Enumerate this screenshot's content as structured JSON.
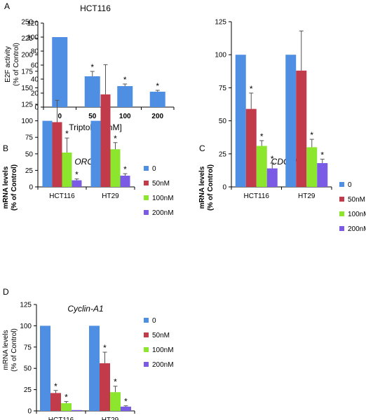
{
  "panels": [
    {
      "letter": "A",
      "colors": [
        "#4F8FE3"
      ],
      "chart_data": {
        "type": "bar",
        "title": "HCT116",
        "xlabel": "Triptolide [nM]",
        "ylabel_lines": [
          "E2F activity",
          "(% of Control)"
        ],
        "categories": [
          "0",
          "50",
          "100",
          "200"
        ],
        "series": [
          {
            "values": [
              100,
              44,
              30,
              22
            ],
            "errors": [
              0,
              7,
              3,
              2
            ],
            "sig": [
              false,
              true,
              true,
              true
            ]
          }
        ],
        "ylim": [
          0,
          120
        ],
        "yticks": [
          "0",
          "20",
          "40",
          "60",
          "80",
          "100",
          "120"
        ],
        "grid": false,
        "legend": "none"
      }
    },
    {
      "letter": "B",
      "colors": [
        "#4F8FE3",
        "#C23B4B",
        "#8CE62E",
        "#7B5BE6"
      ],
      "chart_data": {
        "type": "bar",
        "title": "ORC-1",
        "ylabel_lines": [
          "mRNA levels",
          "(% of Control)"
        ],
        "categories": [
          "HCT116",
          "HT29"
        ],
        "series": [
          {
            "name": "0",
            "values": [
              100,
              100
            ],
            "errors": [
              0,
              0
            ],
            "sig": [
              false,
              false
            ]
          },
          {
            "name": "50nM",
            "values": [
              98,
              140
            ],
            "errors": [
              33,
              45
            ],
            "sig": [
              false,
              false
            ]
          },
          {
            "name": "100nM",
            "values": [
              52,
              57
            ],
            "errors": [
              22,
              10
            ],
            "sig": [
              true,
              true
            ]
          },
          {
            "name": "200nM",
            "values": [
              10,
              17
            ],
            "errors": [
              2,
              3
            ],
            "sig": [
              true,
              true
            ]
          }
        ],
        "ylim": [
          0,
          250
        ],
        "yticks": [
          "0",
          "25",
          "50",
          "75",
          "100",
          "125",
          "150",
          "175",
          "200",
          "225",
          "250"
        ],
        "grid": false,
        "legend": "right"
      }
    },
    {
      "letter": "C",
      "colors": [
        "#4F8FE3",
        "#C23B4B",
        "#8CE62E",
        "#7B5BE6"
      ],
      "chart_data": {
        "type": "bar",
        "title": "CDC-2",
        "ylabel_lines": [
          "mRNA levels",
          "(% of Control)"
        ],
        "categories": [
          "HCT116",
          "HT29"
        ],
        "series": [
          {
            "name": "0",
            "values": [
              100,
              100
            ],
            "errors": [
              0,
              0
            ],
            "sig": [
              false,
              false
            ]
          },
          {
            "name": "50nM",
            "values": [
              59,
              88
            ],
            "errors": [
              12,
              30
            ],
            "sig": [
              true,
              false
            ]
          },
          {
            "name": "100nM",
            "values": [
              31,
              30
            ],
            "errors": [
              4,
              6
            ],
            "sig": [
              true,
              true
            ]
          },
          {
            "name": "200nM",
            "values": [
              14,
              18
            ],
            "errors": [
              4,
              3
            ],
            "sig": [
              true,
              true
            ]
          }
        ],
        "ylim": [
          0,
          125
        ],
        "yticks": [
          "0",
          "25",
          "50",
          "75",
          "100",
          "125"
        ],
        "grid": false,
        "legend": "right"
      }
    },
    {
      "letter": "D",
      "colors": [
        "#4F8FE3",
        "#C23B4B",
        "#8CE62E",
        "#7B5BE6"
      ],
      "chart_data": {
        "type": "bar",
        "title": "Cyclin-A1",
        "ylabel_lines": [
          "mRNA levels",
          "(% of Control)"
        ],
        "categories": [
          "HCT116",
          "HT29"
        ],
        "series": [
          {
            "name": "0",
            "values": [
              100,
              100
            ],
            "errors": [
              0,
              0
            ],
            "sig": [
              false,
              false
            ]
          },
          {
            "name": "50nM",
            "values": [
              21,
              56
            ],
            "errors": [
              3,
              13
            ],
            "sig": [
              true,
              true
            ]
          },
          {
            "name": "100nM",
            "values": [
              9,
              22
            ],
            "errors": [
              2,
              7
            ],
            "sig": [
              true,
              true
            ]
          },
          {
            "name": "200nM",
            "values": [
              1,
              5
            ],
            "errors": [
              0,
              1
            ],
            "sig": [
              false,
              true
            ]
          }
        ],
        "ylim": [
          0,
          125
        ],
        "yticks": [
          "0",
          "25",
          "50",
          "75",
          "100",
          "125"
        ],
        "grid": false,
        "legend": "right"
      }
    }
  ]
}
